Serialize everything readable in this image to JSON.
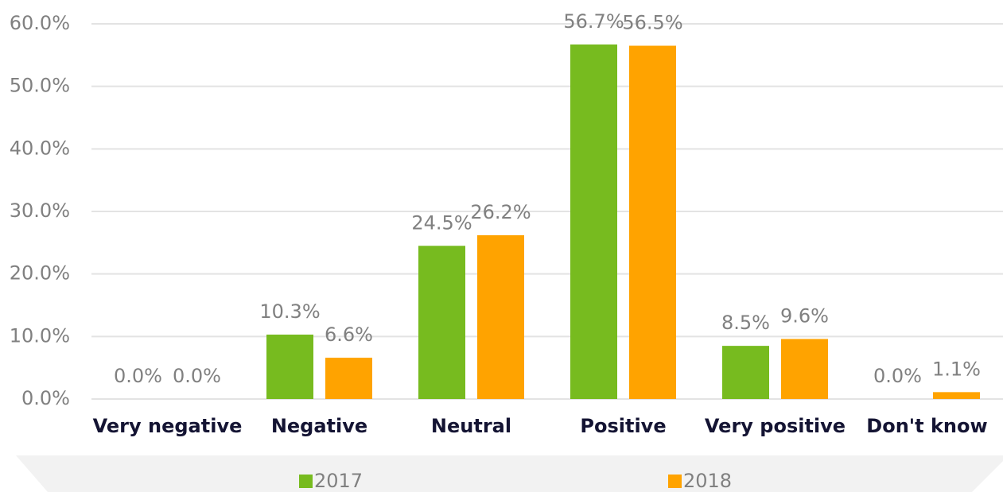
{
  "chart_data": {
    "type": "bar",
    "categories": [
      "Very negative",
      "Negative",
      "Neutral",
      "Positive",
      "Very positive",
      "Don't know"
    ],
    "series": [
      {
        "name": "2017",
        "color": "#77bb1f",
        "values": [
          0,
          10.3,
          24.5,
          56.7,
          8.5,
          0
        ],
        "value_labels": [
          "0.0%",
          "10.3%",
          "24.5%",
          "56.7%",
          "8.5%",
          "0.0%"
        ]
      },
      {
        "name": "2018",
        "color": "#ffa300",
        "values": [
          0,
          6.6,
          26.2,
          56.5,
          9.6,
          1.1
        ],
        "value_labels": [
          "0.0%",
          "6.6%",
          "26.2%",
          "56.5%",
          "9.6%",
          "1.1%"
        ]
      }
    ],
    "ylim": [
      0,
      60
    ],
    "yticks": [
      {
        "value": 0,
        "label": "0.0%"
      },
      {
        "value": 10,
        "label": "10.0%"
      },
      {
        "value": 20,
        "label": "20.0%"
      },
      {
        "value": 30,
        "label": "30.0%"
      },
      {
        "value": 40,
        "label": "40.0%"
      },
      {
        "value": 50,
        "label": "50.0%"
      },
      {
        "value": 60,
        "label": "60.0%"
      }
    ],
    "grid": true,
    "legend": "bottom"
  }
}
